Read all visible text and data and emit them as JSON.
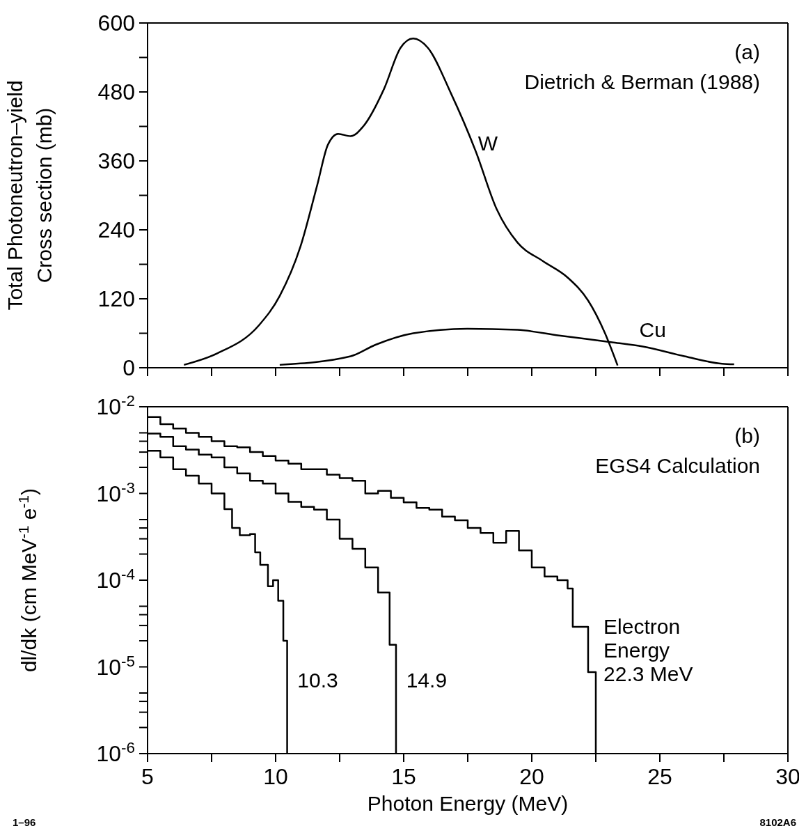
{
  "chart_data": [
    {
      "type": "line",
      "ylabel": "Total Photoneutron–yield\nCross section  (mb)",
      "xlim": [
        5,
        30
      ],
      "xticks": [
        5,
        {
          "value": 7.5,
          "label": null
        },
        10,
        {
          "value": 12.5,
          "label": null
        },
        15,
        {
          "value": 17.5,
          "label": null
        },
        20,
        {
          "value": 22.5,
          "label": null
        },
        25,
        {
          "value": 27.5,
          "label": null
        },
        30
      ],
      "ylim": [
        0,
        600
      ],
      "yticks": [
        0,
        {
          "value": 60,
          "label": null
        },
        120,
        {
          "value": 180,
          "label": null
        },
        240,
        {
          "value": 300,
          "label": null
        },
        360,
        {
          "value": 420,
          "label": null
        },
        480,
        {
          "value": 540,
          "label": null
        },
        600
      ],
      "tick_labels": "y",
      "annotations": [
        "(a)",
        "Dietrich & Berman (1988)"
      ],
      "series": [
        {
          "name": "W",
          "color": "#000000",
          "x": [
            6.42,
            7.72,
            9.35,
            10.16,
            10.97,
            11.63,
            12.04,
            12.44,
            12.93,
            13.42,
            14.23,
            14.88,
            15.37,
            15.94,
            16.84,
            17.81,
            18.63,
            19.44,
            20.42,
            21.4,
            22.2,
            22.86,
            23.35
          ],
          "values": [
            5,
            25,
            74,
            125,
            211,
            319,
            388,
            407,
            403,
            420,
            485,
            557,
            573,
            557,
            478,
            377,
            276,
            218,
            186,
            157,
            117,
            60,
            4
          ]
        },
        {
          "name": "Cu",
          "color": "#000000",
          "x": [
            10.16,
            12.93,
            13.9,
            15.37,
            17.48,
            19.44,
            21.07,
            23.19,
            24.33,
            25.96,
            27.43,
            27.9
          ],
          "values": [
            5,
            20,
            40,
            60,
            68,
            66,
            56,
            44,
            37,
            20,
            7,
            6
          ]
        }
      ]
    },
    {
      "type": "step",
      "xlabel": "Photon Energy   (MeV)",
      "ylabel": "dl/dk  (cm MeV$^{-1}$ e$^{-1}$)",
      "log": true,
      "xlim": [
        5,
        30
      ],
      "xticks": [
        5,
        {
          "value": 7.5,
          "label": null
        },
        10,
        {
          "value": 12.5,
          "label": null
        },
        15,
        {
          "value": 17.5,
          "label": null
        },
        20,
        {
          "value": 22.5,
          "label": null
        },
        25,
        {
          "value": 27.5,
          "label": null
        },
        30
      ],
      "ylim": [
        1e-06,
        0.01
      ],
      "yticks": [
        {
          "value": 1e-06,
          "label": "10$^{-6}$"
        },
        {
          "value": 2e-06,
          "label": null
        },
        {
          "value": 3e-06,
          "label": null
        },
        {
          "value": 4e-06,
          "label": null
        },
        {
          "value": 5e-06,
          "label": null
        },
        {
          "value": 1e-05,
          "label": "10$^{-5}$"
        },
        {
          "value": 2e-05,
          "label": null
        },
        {
          "value": 3e-05,
          "label": null
        },
        {
          "value": 4e-05,
          "label": null
        },
        {
          "value": 5e-05,
          "label": null
        },
        {
          "value": 0.0001,
          "label": "10$^{-4}$"
        },
        {
          "value": 0.0002,
          "label": null
        },
        {
          "value": 0.0003,
          "label": null
        },
        {
          "value": 0.0004,
          "label": null
        },
        {
          "value": 0.0005,
          "label": null
        },
        {
          "value": 0.001,
          "label": "10$^{-3}$"
        },
        {
          "value": 0.002,
          "label": null
        },
        {
          "value": 0.003,
          "label": null
        },
        {
          "value": 0.004,
          "label": null
        },
        {
          "value": 0.005,
          "label": null
        },
        {
          "value": 0.01,
          "label": "10$^{-2}$"
        }
      ],
      "annotations": [
        "(b)",
        "EGS4 Calculation",
        "1–96",
        "8102A6"
      ],
      "series": [
        {
          "name": "10.3",
          "color": "#000000",
          "x": [
            5,
            5.5,
            6,
            6.5,
            7,
            7.5,
            8,
            8.3,
            8.6,
            9,
            9.2,
            9.4,
            9.7,
            9.9,
            10.1,
            10.3,
            10.45
          ],
          "values": [
            0.0031,
            0.0026,
            0.0019,
            0.0016,
            0.0013,
            0.001,
            0.00066,
            0.0004,
            0.00033,
            0.00034,
            0.00021,
            0.00015,
            8.5e-05,
            0.0001,
            5.8e-05,
            2e-05,
            1e-06
          ]
        },
        {
          "name": "14.9",
          "color": "#000000",
          "x": [
            5,
            5.5,
            6,
            6.5,
            7,
            7.5,
            8,
            8.5,
            9,
            9.5,
            10,
            10.5,
            11,
            11.5,
            12,
            12.5,
            13,
            13.5,
            14,
            14.45,
            14.7
          ],
          "values": [
            0.0049,
            0.0045,
            0.0035,
            0.0032,
            0.0028,
            0.0026,
            0.002,
            0.0017,
            0.0014,
            0.0013,
            0.001,
            0.0008,
            0.0007,
            0.00065,
            0.0005,
            0.0003,
            0.00023,
            0.00014,
            7.2e-05,
            1.8e-05,
            1e-06
          ]
        },
        {
          "name": "Electron\nEnergy\n22.3 MeV",
          "color": "#000000",
          "x": [
            5,
            5.5,
            6,
            6.5,
            7,
            7.5,
            8,
            8.5,
            9,
            9.5,
            10,
            10.5,
            11,
            11.5,
            12,
            12.5,
            13,
            13.5,
            14,
            14.5,
            15,
            15.5,
            16,
            16.5,
            17,
            17.5,
            18,
            18.5,
            19,
            19.5,
            20,
            20.5,
            21,
            21.4,
            21.6,
            22.2,
            22.5
          ],
          "values": [
            0.0076,
            0.0063,
            0.0056,
            0.005,
            0.0045,
            0.004,
            0.0035,
            0.0034,
            0.003,
            0.0027,
            0.0024,
            0.0022,
            0.0019,
            0.0019,
            0.00165,
            0.0015,
            0.0014,
            0.001,
            0.00107,
            0.00089,
            0.00079,
            0.00068,
            0.00065,
            0.00054,
            0.00049,
            0.0004,
            0.00035,
            0.00027,
            0.00037,
            0.00022,
            0.00014,
            0.00011,
            0.0001,
            8e-05,
            2.9e-05,
            8.7e-06,
            1e-06
          ]
        }
      ]
    }
  ]
}
